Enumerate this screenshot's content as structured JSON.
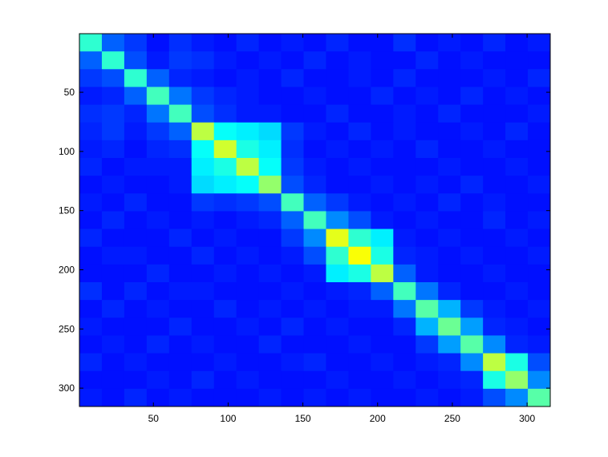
{
  "chart_data": {
    "type": "heatmap",
    "colormap": "jet",
    "clim": [
      0,
      1
    ],
    "x": [
      8,
      23,
      38,
      53,
      68,
      83,
      98,
      113,
      128,
      143,
      158,
      173,
      188,
      203,
      218,
      233,
      248,
      263,
      278,
      293,
      308
    ],
    "y": [
      8,
      23,
      38,
      53,
      68,
      83,
      98,
      113,
      128,
      143,
      158,
      173,
      188,
      203,
      218,
      233,
      248,
      263,
      278,
      293,
      308
    ],
    "values": [
      [
        0.42,
        0.22,
        0.18,
        0.14,
        0.17,
        0.15,
        0.14,
        0.16,
        0.14,
        0.15,
        0.14,
        0.16,
        0.14,
        0.14,
        0.17,
        0.14,
        0.15,
        0.14,
        0.16,
        0.14,
        0.15
      ],
      [
        0.22,
        0.42,
        0.2,
        0.15,
        0.18,
        0.17,
        0.15,
        0.14,
        0.15,
        0.14,
        0.16,
        0.14,
        0.15,
        0.14,
        0.14,
        0.16,
        0.14,
        0.15,
        0.14,
        0.14,
        0.14
      ],
      [
        0.18,
        0.2,
        0.42,
        0.22,
        0.16,
        0.15,
        0.14,
        0.15,
        0.14,
        0.16,
        0.14,
        0.14,
        0.15,
        0.14,
        0.16,
        0.14,
        0.14,
        0.14,
        0.15,
        0.14,
        0.16
      ],
      [
        0.15,
        0.16,
        0.22,
        0.44,
        0.24,
        0.18,
        0.16,
        0.15,
        0.14,
        0.14,
        0.15,
        0.14,
        0.14,
        0.16,
        0.14,
        0.15,
        0.14,
        0.16,
        0.14,
        0.15,
        0.14
      ],
      [
        0.17,
        0.18,
        0.16,
        0.24,
        0.44,
        0.2,
        0.17,
        0.15,
        0.15,
        0.14,
        0.14,
        0.16,
        0.14,
        0.14,
        0.15,
        0.14,
        0.16,
        0.14,
        0.14,
        0.14,
        0.15
      ],
      [
        0.16,
        0.18,
        0.15,
        0.18,
        0.22,
        0.56,
        0.38,
        0.36,
        0.34,
        0.18,
        0.15,
        0.14,
        0.16,
        0.14,
        0.15,
        0.14,
        0.14,
        0.15,
        0.14,
        0.16,
        0.14
      ],
      [
        0.15,
        0.16,
        0.14,
        0.16,
        0.17,
        0.38,
        0.58,
        0.4,
        0.36,
        0.17,
        0.14,
        0.15,
        0.14,
        0.15,
        0.14,
        0.16,
        0.14,
        0.14,
        0.15,
        0.14,
        0.14
      ],
      [
        0.16,
        0.14,
        0.15,
        0.15,
        0.15,
        0.36,
        0.4,
        0.56,
        0.38,
        0.18,
        0.15,
        0.14,
        0.15,
        0.14,
        0.14,
        0.14,
        0.15,
        0.14,
        0.14,
        0.15,
        0.14
      ],
      [
        0.14,
        0.15,
        0.14,
        0.14,
        0.15,
        0.34,
        0.36,
        0.38,
        0.52,
        0.2,
        0.16,
        0.14,
        0.14,
        0.15,
        0.14,
        0.15,
        0.14,
        0.16,
        0.14,
        0.14,
        0.15
      ],
      [
        0.15,
        0.14,
        0.16,
        0.14,
        0.14,
        0.18,
        0.17,
        0.18,
        0.2,
        0.44,
        0.22,
        0.18,
        0.15,
        0.14,
        0.15,
        0.14,
        0.16,
        0.14,
        0.15,
        0.14,
        0.14
      ],
      [
        0.14,
        0.16,
        0.14,
        0.15,
        0.14,
        0.15,
        0.14,
        0.15,
        0.16,
        0.22,
        0.44,
        0.26,
        0.2,
        0.15,
        0.14,
        0.15,
        0.14,
        0.14,
        0.16,
        0.14,
        0.15
      ],
      [
        0.16,
        0.14,
        0.14,
        0.14,
        0.16,
        0.14,
        0.15,
        0.14,
        0.14,
        0.18,
        0.26,
        0.6,
        0.42,
        0.36,
        0.15,
        0.14,
        0.15,
        0.14,
        0.14,
        0.15,
        0.14
      ],
      [
        0.14,
        0.15,
        0.15,
        0.14,
        0.14,
        0.16,
        0.14,
        0.15,
        0.14,
        0.15,
        0.2,
        0.42,
        0.62,
        0.4,
        0.16,
        0.15,
        0.14,
        0.15,
        0.14,
        0.14,
        0.15
      ],
      [
        0.14,
        0.14,
        0.14,
        0.16,
        0.14,
        0.14,
        0.15,
        0.14,
        0.15,
        0.14,
        0.15,
        0.36,
        0.4,
        0.56,
        0.22,
        0.15,
        0.14,
        0.14,
        0.15,
        0.14,
        0.14
      ],
      [
        0.17,
        0.14,
        0.16,
        0.14,
        0.15,
        0.15,
        0.14,
        0.14,
        0.14,
        0.15,
        0.14,
        0.15,
        0.16,
        0.22,
        0.44,
        0.24,
        0.16,
        0.14,
        0.14,
        0.15,
        0.14
      ],
      [
        0.14,
        0.16,
        0.14,
        0.15,
        0.14,
        0.14,
        0.16,
        0.14,
        0.15,
        0.14,
        0.15,
        0.14,
        0.15,
        0.15,
        0.24,
        0.46,
        0.3,
        0.18,
        0.15,
        0.14,
        0.15
      ],
      [
        0.15,
        0.14,
        0.14,
        0.14,
        0.16,
        0.14,
        0.14,
        0.15,
        0.14,
        0.16,
        0.14,
        0.15,
        0.14,
        0.14,
        0.16,
        0.3,
        0.48,
        0.28,
        0.16,
        0.15,
        0.14
      ],
      [
        0.14,
        0.15,
        0.14,
        0.16,
        0.14,
        0.15,
        0.14,
        0.14,
        0.16,
        0.14,
        0.14,
        0.14,
        0.15,
        0.14,
        0.14,
        0.18,
        0.28,
        0.46,
        0.26,
        0.16,
        0.15
      ],
      [
        0.16,
        0.14,
        0.15,
        0.14,
        0.14,
        0.14,
        0.15,
        0.14,
        0.14,
        0.15,
        0.16,
        0.14,
        0.14,
        0.15,
        0.14,
        0.15,
        0.16,
        0.26,
        0.56,
        0.4,
        0.2
      ],
      [
        0.14,
        0.14,
        0.14,
        0.15,
        0.14,
        0.16,
        0.14,
        0.15,
        0.14,
        0.14,
        0.14,
        0.15,
        0.14,
        0.14,
        0.15,
        0.14,
        0.15,
        0.16,
        0.4,
        0.52,
        0.26
      ],
      [
        0.15,
        0.14,
        0.16,
        0.14,
        0.15,
        0.14,
        0.14,
        0.14,
        0.15,
        0.14,
        0.15,
        0.14,
        0.15,
        0.14,
        0.14,
        0.15,
        0.14,
        0.15,
        0.2,
        0.26,
        0.46
      ]
    ],
    "xlim": [
      0.5,
      315.5
    ],
    "ylim": [
      0.5,
      315.5
    ],
    "y_reversed": true,
    "xticks": [
      50,
      100,
      150,
      200,
      250,
      300
    ],
    "yticks": [
      50,
      100,
      150,
      200,
      250,
      300
    ]
  }
}
